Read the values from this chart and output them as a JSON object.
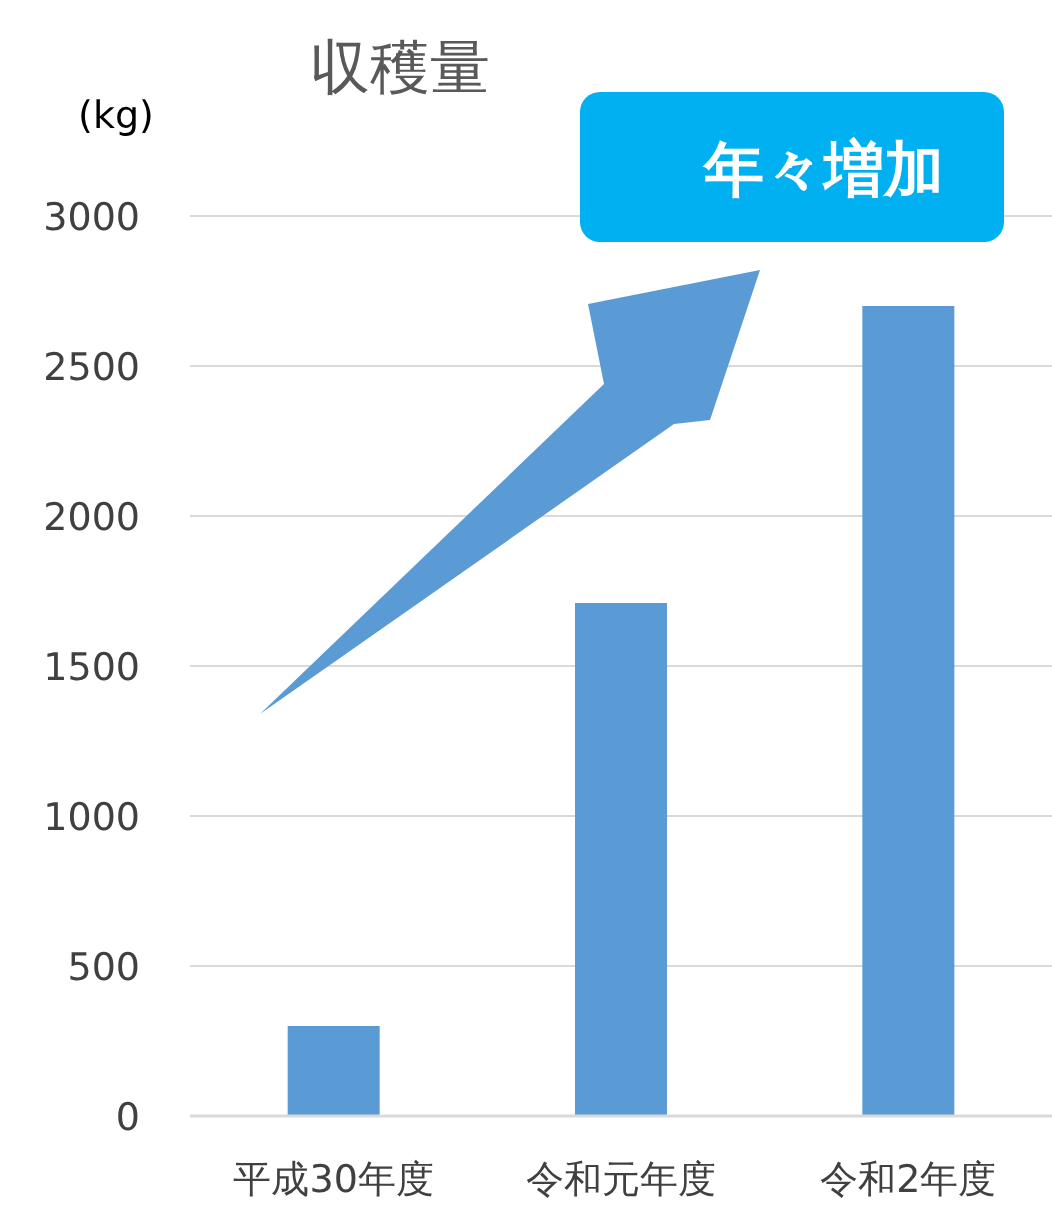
{
  "chart_data": {
    "type": "bar",
    "title": "収穫量",
    "ylabel": "(kg)",
    "categories": [
      "平成30年度",
      "令和元年度",
      "令和2年度"
    ],
    "values": [
      300,
      1710,
      2700
    ],
    "color": "#5b9bd5",
    "ylim": [
      0,
      3000
    ],
    "yticks": [
      0,
      500,
      1000,
      1500,
      2000,
      2500,
      3000
    ],
    "grid": "y",
    "annotations": [
      "年々増加"
    ]
  }
}
